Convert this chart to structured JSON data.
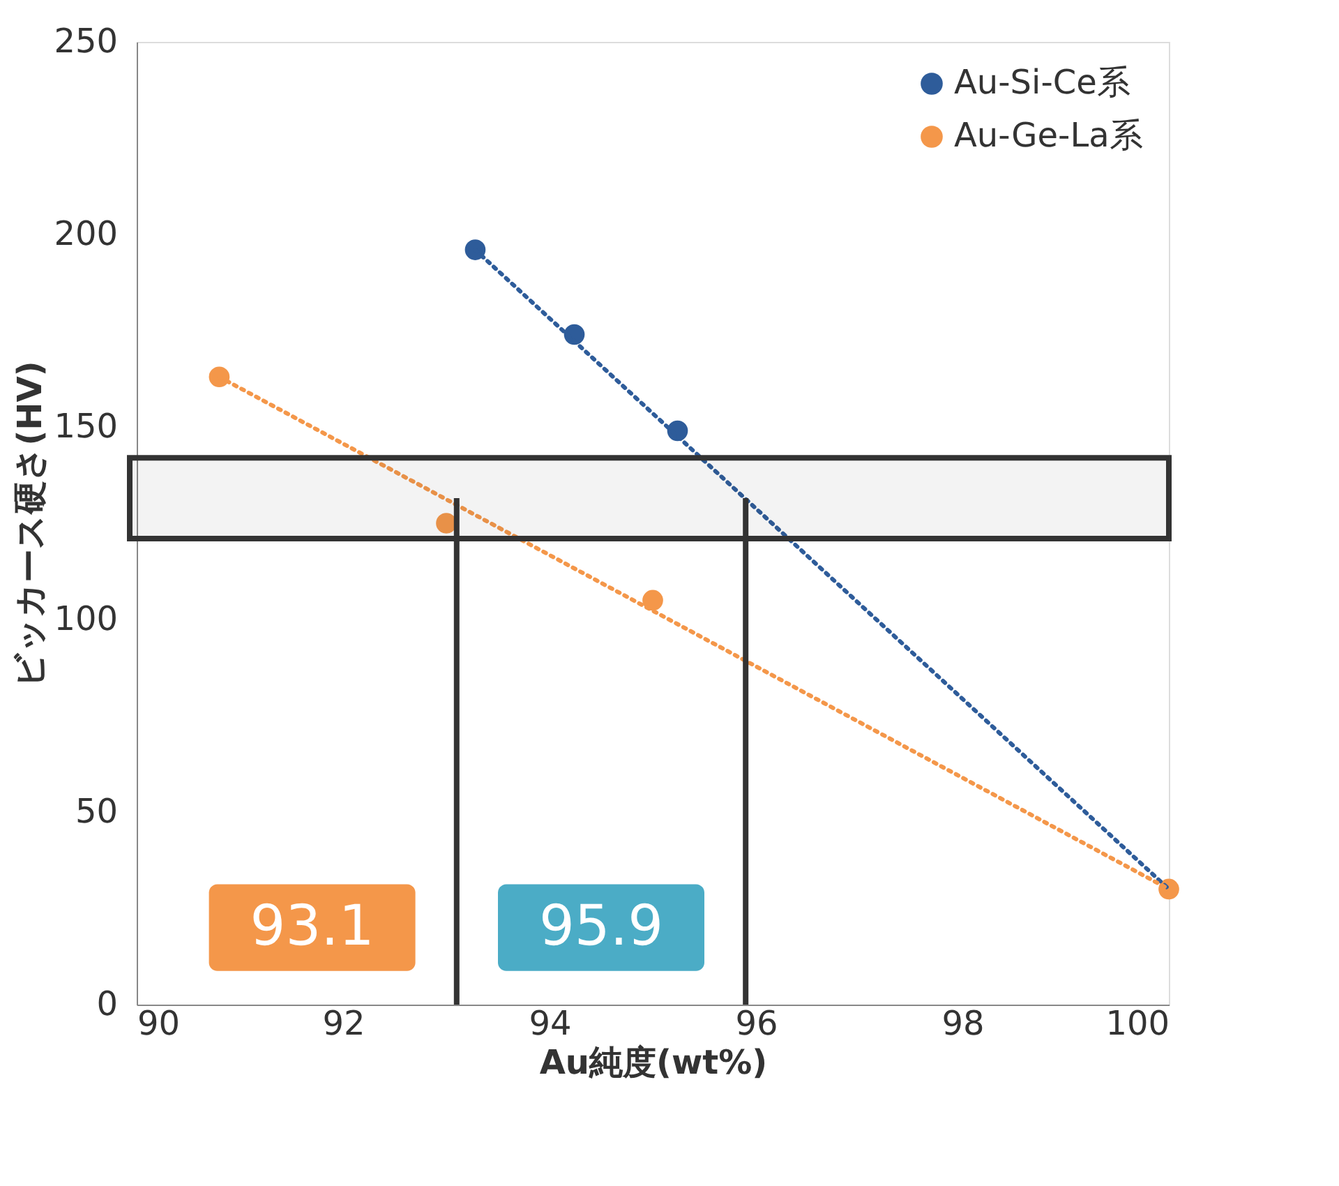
{
  "chart_data": {
    "type": "scatter",
    "xlabel": "Au純度(wt%)",
    "ylabel": "ビッカース硬さ(HV)",
    "xlim": [
      90,
      100
    ],
    "xticks": [
      90,
      92,
      94,
      96,
      98,
      100
    ],
    "ylim": [
      0,
      250
    ],
    "yticks": [
      0,
      50,
      100,
      150,
      200,
      250
    ],
    "series": [
      {
        "name": "Au-Si-Ce系",
        "color": "#2e5c9a",
        "marker": "circle",
        "x": [
          93.28,
          94.24,
          95.24
        ],
        "values": [
          196,
          174,
          149
        ]
      },
      {
        "name": "Au-Ge-La系",
        "color": "#f4974a",
        "marker": "circle",
        "x": [
          90.8,
          93.0,
          95.0,
          100
        ],
        "values": [
          163,
          125,
          105,
          30
        ]
      },
      {
        "color": "#2e5c9a",
        "type": "line",
        "line_style": "dotted",
        "x": [
          93.28,
          100
        ],
        "values": [
          196,
          30
        ]
      },
      {
        "color": "#f4974a",
        "type": "line",
        "line_style": "dotted",
        "x": [
          90.8,
          100
        ],
        "values": [
          163,
          30
        ]
      }
    ],
    "bands": [
      {
        "axis": "y",
        "from": 121,
        "to": 142,
        "color": "#333333"
      }
    ],
    "ref_lines": [
      {
        "axis": "x",
        "value": 93.1,
        "label": "93.1",
        "color": "#333333"
      },
      {
        "axis": "x",
        "value": 95.9,
        "label": "95.9",
        "color": "#333333"
      }
    ],
    "grid": false,
    "legend": "top right"
  }
}
